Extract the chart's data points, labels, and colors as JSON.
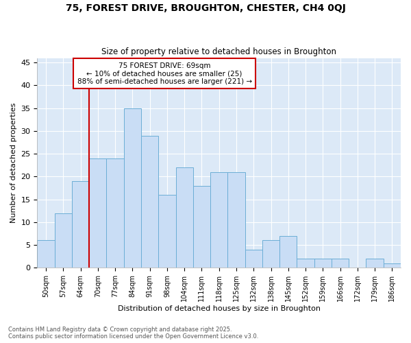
{
  "title": "75, FOREST DRIVE, BROUGHTON, CHESTER, CH4 0QJ",
  "subtitle": "Size of property relative to detached houses in Broughton",
  "xlabel": "Distribution of detached houses by size in Broughton",
  "ylabel": "Number of detached properties",
  "footnote1": "Contains HM Land Registry data © Crown copyright and database right 2025.",
  "footnote2": "Contains public sector information licensed under the Open Government Licence v3.0.",
  "categories": [
    "50sqm",
    "57sqm",
    "64sqm",
    "70sqm",
    "77sqm",
    "84sqm",
    "91sqm",
    "98sqm",
    "104sqm",
    "111sqm",
    "118sqm",
    "125sqm",
    "132sqm",
    "138sqm",
    "145sqm",
    "152sqm",
    "159sqm",
    "166sqm",
    "172sqm",
    "179sqm",
    "186sqm"
  ],
  "values": [
    6,
    12,
    19,
    24,
    24,
    35,
    29,
    16,
    22,
    18,
    21,
    21,
    4,
    6,
    7,
    2,
    2,
    2,
    0,
    2,
    1
  ],
  "bar_color": "#c9ddf5",
  "bar_edge_color": "#6baed6",
  "fig_bg_color": "#ffffff",
  "plot_bg_color": "#dce9f7",
  "grid_color": "#ffffff",
  "vline_color": "#cc0000",
  "vline_x_index": 3,
  "annotation_text": "75 FOREST DRIVE: 69sqm\n← 10% of detached houses are smaller (25)\n88% of semi-detached houses are larger (221) →",
  "annotation_box_color": "#cc0000",
  "ylim": [
    0,
    46
  ],
  "yticks": [
    0,
    5,
    10,
    15,
    20,
    25,
    30,
    35,
    40,
    45
  ]
}
